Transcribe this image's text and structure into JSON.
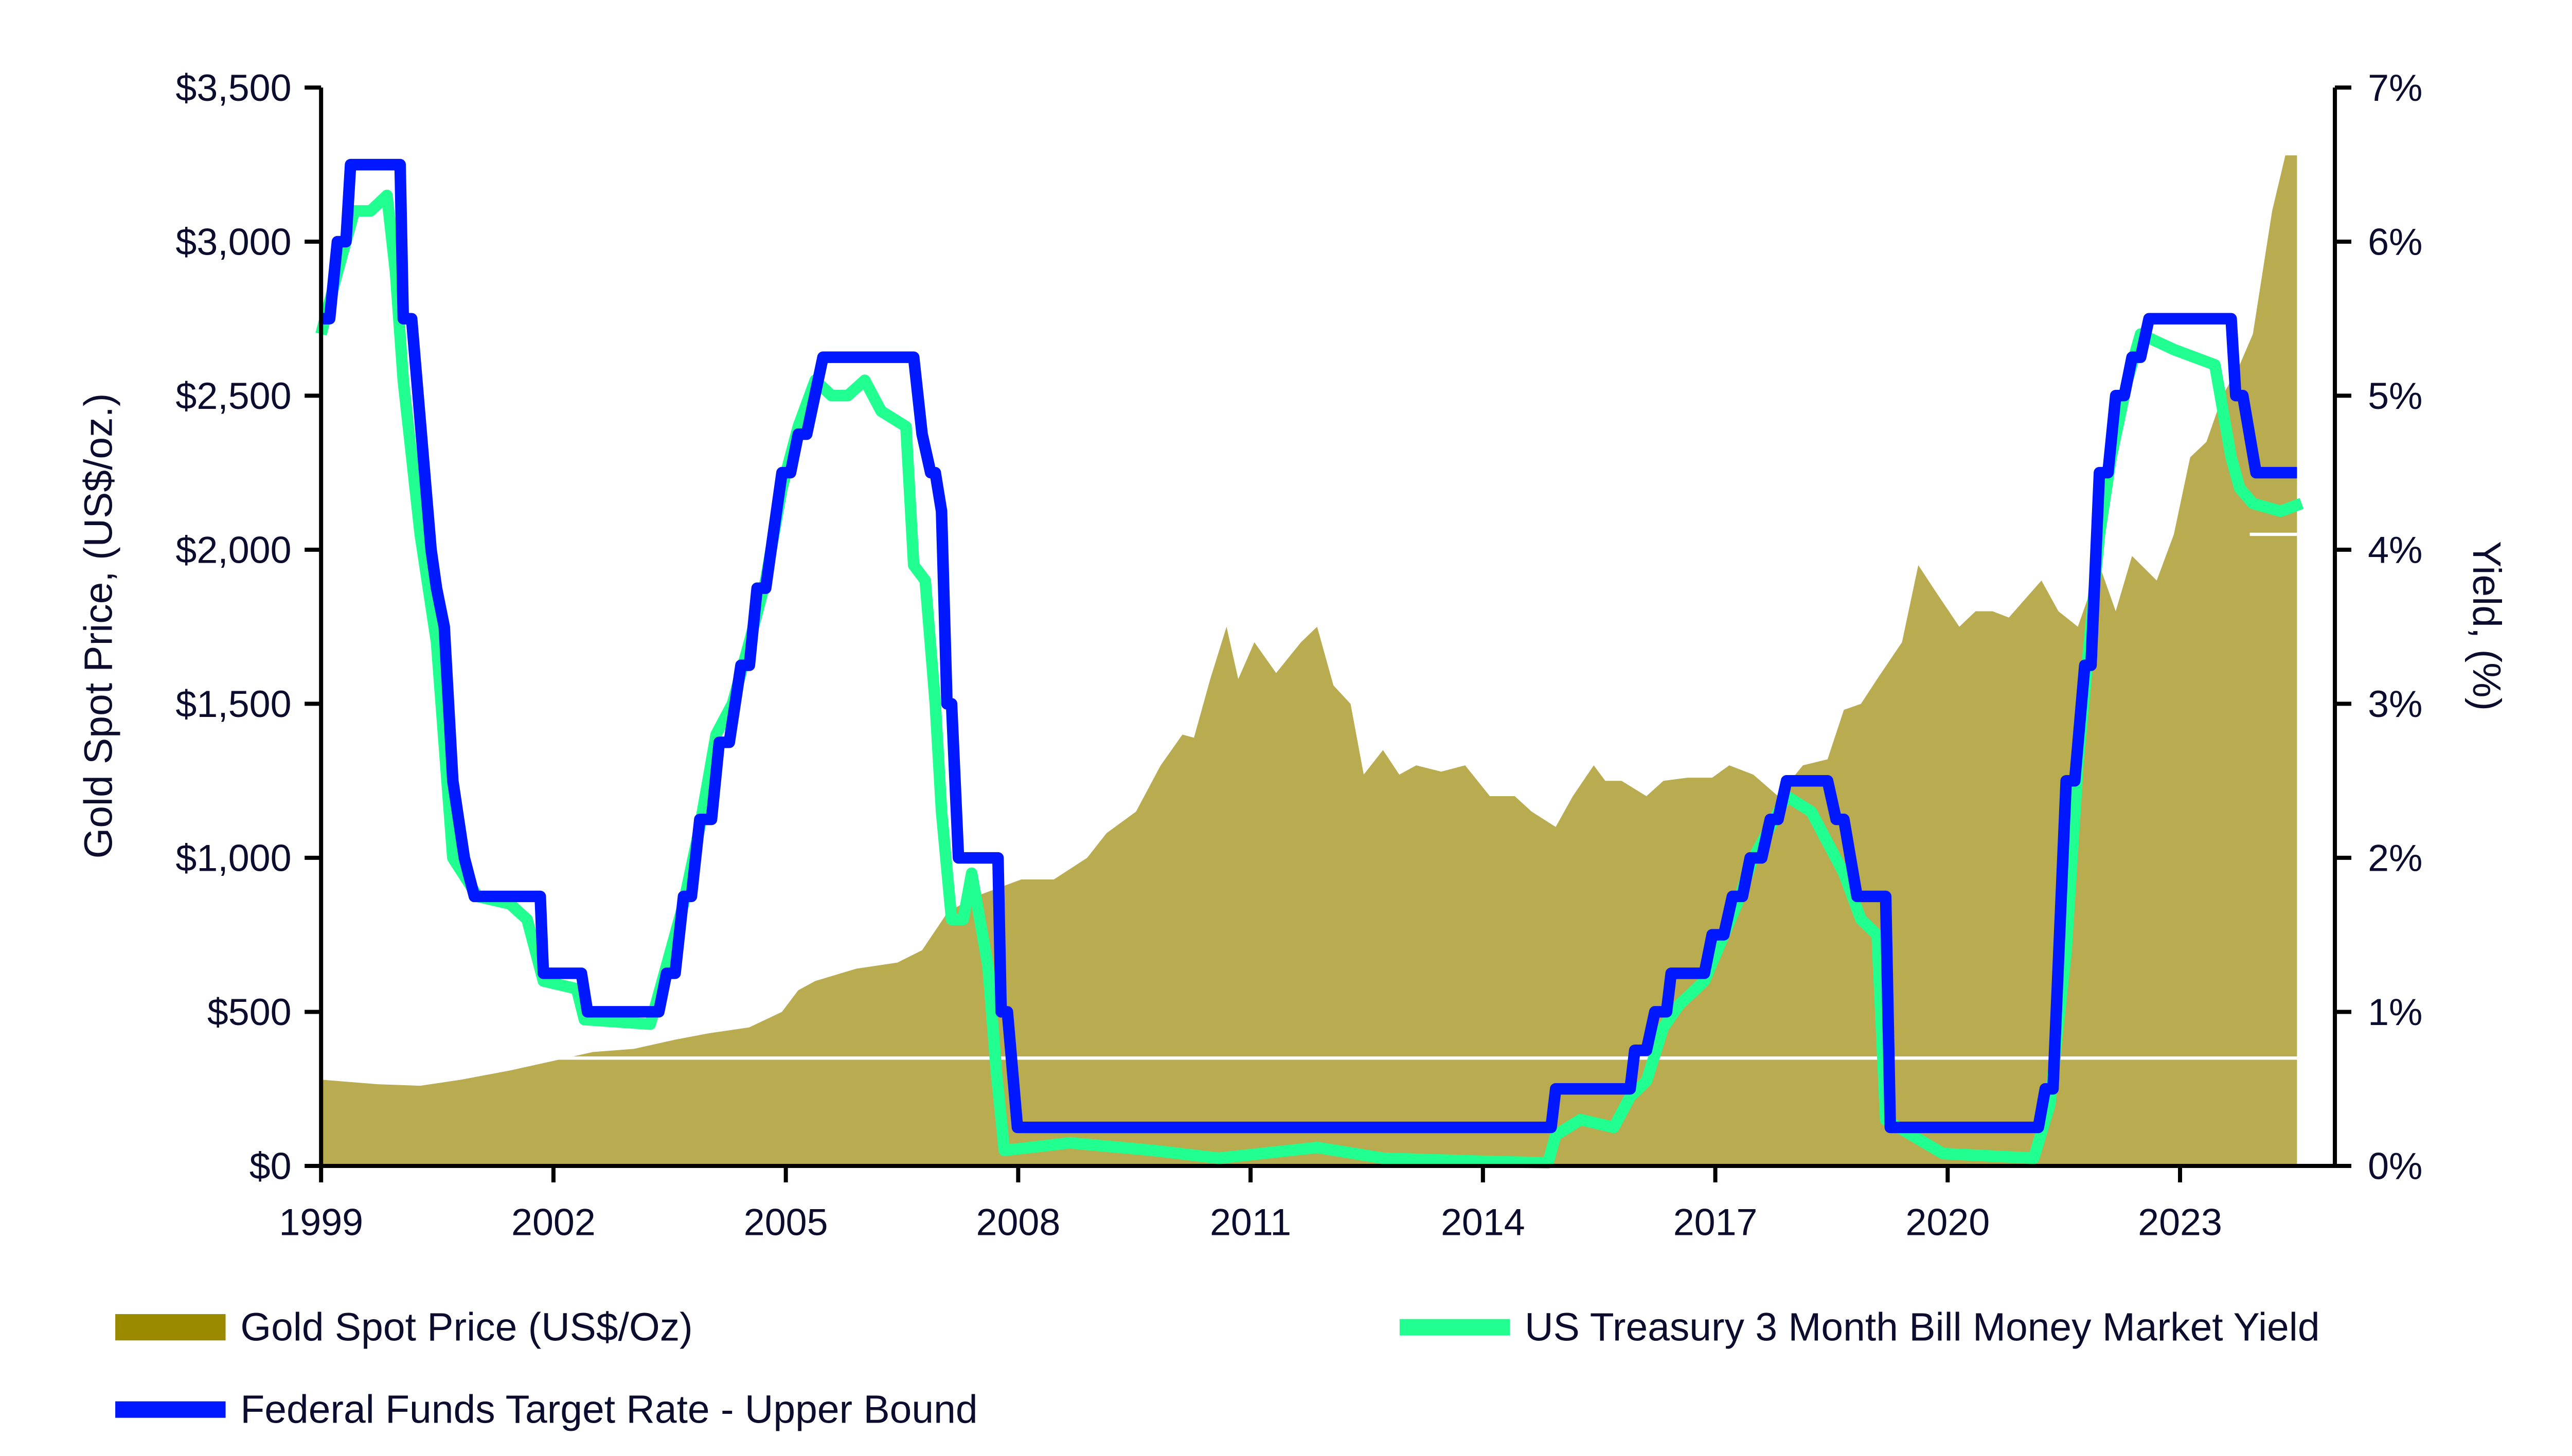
{
  "chart_data": {
    "type": "area+line",
    "title": "",
    "xlabel": "",
    "ylabel_left": "Gold Spot Price, (US$/oz.)",
    "ylabel_right": "Yield, (%)",
    "xlim": [
      1999,
      2025.5
    ],
    "ylim_left": [
      0,
      3500
    ],
    "ylim_right": [
      0,
      7
    ],
    "grid": false,
    "legend_placement": "bottom",
    "x_ticks": [
      "1999",
      "2002",
      "2005",
      "2008",
      "2011",
      "2014",
      "2017",
      "2020",
      "2023"
    ],
    "x_tick_values": [
      1999,
      2002,
      2005,
      2008,
      2011,
      2014,
      2017,
      2020,
      2023
    ],
    "y_ticks_left": [
      "$0",
      "$500",
      "$1,000",
      "$1,500",
      "$2,000",
      "$2,500",
      "$3,000",
      "$3,500"
    ],
    "y_tick_values_left": [
      0,
      500,
      1000,
      1500,
      2000,
      2500,
      3000,
      3500
    ],
    "y_ticks_right": [
      "0%",
      "1%",
      "2%",
      "3%",
      "4%",
      "5%",
      "6%",
      "7%"
    ],
    "y_tick_values_right": [
      0,
      1,
      2,
      3,
      4,
      5,
      6,
      7
    ],
    "colors": {
      "gold": "#b9ab50",
      "gold_legend": "#9a8a00",
      "treasury": "#20ff90",
      "fed": "#0018ff",
      "text": "#0b0c2e"
    },
    "series": [
      {
        "name": "Gold Spot Price (US$/Oz)",
        "axis": "left",
        "kind": "area",
        "x": [
          1999,
          1999.74,
          2000.28,
          2000.81,
          2001.44,
          2001.98,
          2002.51,
          2003.04,
          2003.57,
          2004.0,
          2004.53,
          2004.95,
          2005.16,
          2005.38,
          2005.91,
          2006.44,
          2006.76,
          2007.08,
          2007.4,
          2007.72,
          2008.04,
          2008.46,
          2008.89,
          2009.14,
          2009.52,
          2009.84,
          2010.12,
          2010.27,
          2010.48,
          2010.69,
          2010.84,
          2011.05,
          2011.33,
          2011.65,
          2011.86,
          2012.07,
          2012.29,
          2012.46,
          2012.71,
          2012.92,
          2013.14,
          2013.46,
          2013.77,
          2014.09,
          2014.41,
          2014.63,
          2014.94,
          2015.16,
          2015.43,
          2015.58,
          2015.79,
          2016.11,
          2016.33,
          2016.64,
          2016.96,
          2017.18,
          2017.49,
          2017.81,
          2018.13,
          2018.45,
          2018.66,
          2018.88,
          2019.09,
          2019.41,
          2019.62,
          2019.83,
          2020.15,
          2020.36,
          2020.58,
          2020.79,
          2021.21,
          2021.43,
          2021.68,
          2021.96,
          2022.17,
          2022.38,
          2022.7,
          2022.92,
          2023.13,
          2023.34,
          2023.55,
          2023.77,
          2023.94,
          2024.19,
          2024.36,
          2024.51
        ],
        "values": [
          280,
          265,
          260,
          280,
          310,
          340,
          370,
          380,
          410,
          430,
          450,
          500,
          570,
          600,
          640,
          660,
          700,
          820,
          870,
          900,
          930,
          930,
          1000,
          1080,
          1150,
          1300,
          1400,
          1390,
          1580,
          1750,
          1580,
          1700,
          1600,
          1700,
          1750,
          1560,
          1500,
          1270,
          1350,
          1270,
          1300,
          1280,
          1300,
          1200,
          1200,
          1150,
          1100,
          1200,
          1300,
          1250,
          1250,
          1200,
          1250,
          1260,
          1260,
          1300,
          1270,
          1200,
          1300,
          1320,
          1480,
          1500,
          1580,
          1700,
          1950,
          1870,
          1750,
          1800,
          1800,
          1780,
          1900,
          1800,
          1750,
          1950,
          1800,
          1980,
          1900,
          2050,
          2300,
          2350,
          2500,
          2600,
          2700,
          3100,
          3280,
          3280
        ]
      },
      {
        "name": "US Treasury 3 Month Bill Money Market Yield",
        "axis": "right",
        "kind": "line",
        "x": [
          1999,
          1999.21,
          1999.43,
          1999.64,
          1999.85,
          1999.96,
          2000.06,
          2000.28,
          2000.49,
          2000.7,
          2001.02,
          2001.44,
          2001.66,
          2001.87,
          2002.3,
          2002.4,
          2003.25,
          2003.46,
          2003.68,
          2003.89,
          2004.1,
          2004.31,
          2004.53,
          2004.74,
          2004.95,
          2005.16,
          2005.38,
          2005.59,
          2005.8,
          2006.02,
          2006.23,
          2006.55,
          2006.65,
          2006.8,
          2006.93,
          2007.01,
          2007.14,
          2007.29,
          2007.4,
          2007.61,
          2007.72,
          2007.82,
          2008.67,
          2009.74,
          2010.59,
          2011.86,
          2012.71,
          2013.99,
          2014.84,
          2014.94,
          2015.26,
          2015.69,
          2015.9,
          2016.11,
          2016.33,
          2016.54,
          2016.86,
          2017.07,
          2017.28,
          2017.49,
          2017.71,
          2017.92,
          2018.24,
          2018.45,
          2018.66,
          2018.88,
          2019.09,
          2019.2,
          2019.94,
          2021.11,
          2021.32,
          2021.53,
          2021.68,
          2021.81,
          2021.96,
          2022.11,
          2022.32,
          2022.49,
          2022.92,
          2023.45,
          2023.66,
          2023.77,
          2023.94,
          2024.3,
          2024.57
        ],
        "values": [
          5.4,
          5.8,
          6.2,
          6.2,
          6.3,
          5.8,
          5.1,
          4.1,
          3.4,
          2.0,
          1.75,
          1.7,
          1.6,
          1.2,
          1.15,
          0.95,
          0.92,
          1.3,
          1.7,
          2.2,
          2.8,
          3.0,
          3.4,
          3.8,
          4.4,
          4.8,
          5.1,
          5.0,
          5.0,
          5.1,
          4.9,
          4.8,
          3.9,
          3.8,
          3.0,
          2.3,
          1.6,
          1.6,
          1.9,
          1.3,
          0.6,
          0.1,
          0.15,
          0.1,
          0.05,
          0.12,
          0.05,
          0.03,
          0.02,
          0.2,
          0.3,
          0.25,
          0.45,
          0.55,
          0.9,
          1.05,
          1.2,
          1.45,
          1.7,
          2.0,
          2.2,
          2.4,
          2.3,
          2.1,
          1.9,
          1.6,
          1.5,
          0.3,
          0.08,
          0.05,
          0.4,
          1.4,
          2.6,
          3.3,
          4.1,
          4.6,
          5.1,
          5.4,
          5.3,
          5.2,
          4.6,
          4.4,
          4.3,
          4.25,
          4.3
        ]
      },
      {
        "name": "Federal Funds Target Rate - Upper Bound",
        "axis": "right",
        "kind": "step-line",
        "x": [
          1999,
          1999.11,
          1999.21,
          1999.32,
          1999.38,
          2000.02,
          2000.06,
          2000.17,
          2000.42,
          2000.49,
          2000.59,
          2000.7,
          2000.85,
          2000.98,
          2001.83,
          2001.87,
          2002.36,
          2002.44,
          2003.36,
          2003.46,
          2003.57,
          2003.68,
          2003.78,
          2003.89,
          2004.04,
          2004.14,
          2004.27,
          2004.42,
          2004.53,
          2004.63,
          2004.74,
          2004.95,
          2005.06,
          2005.16,
          2005.27,
          2005.48,
          2006.65,
          2006.76,
          2006.87,
          2006.93,
          2007.01,
          2007.08,
          2007.14,
          2007.23,
          2007.74,
          2007.78,
          2007.86,
          2007.99,
          2014.88,
          2014.94,
          2015.9,
          2015.96,
          2016.11,
          2016.22,
          2016.37,
          2016.43,
          2016.86,
          2016.96,
          2017.11,
          2017.22,
          2017.35,
          2017.45,
          2017.6,
          2017.71,
          2017.81,
          2017.92,
          2018.45,
          2018.56,
          2018.66,
          2018.83,
          2019.2,
          2019.26,
          2021.17,
          2021.26,
          2021.36,
          2021.53,
          2021.64,
          2021.77,
          2021.85,
          2021.96,
          2022.07,
          2022.17,
          2022.28,
          2022.38,
          2022.49,
          2022.6,
          2023.66,
          2023.72,
          2023.81,
          2023.98,
          2024.51
        ],
        "values": [
          5.5,
          5.5,
          6.0,
          6.0,
          6.5,
          6.5,
          5.5,
          5.5,
          4.0,
          3.75,
          3.5,
          2.5,
          2.0,
          1.75,
          1.75,
          1.25,
          1.25,
          1.0,
          1.0,
          1.25,
          1.25,
          1.75,
          1.75,
          2.25,
          2.25,
          2.75,
          2.75,
          3.25,
          3.25,
          3.75,
          3.75,
          4.5,
          4.5,
          4.75,
          4.75,
          5.25,
          5.25,
          4.75,
          4.5,
          4.5,
          4.25,
          3.0,
          3.0,
          2.0,
          2.0,
          1.0,
          1.0,
          0.25,
          0.25,
          0.5,
          0.5,
          0.75,
          0.75,
          1.0,
          1.0,
          1.25,
          1.25,
          1.5,
          1.5,
          1.75,
          1.75,
          2.0,
          2.0,
          2.25,
          2.25,
          2.5,
          2.5,
          2.25,
          2.25,
          1.75,
          1.75,
          0.25,
          0.25,
          0.5,
          0.5,
          2.5,
          2.5,
          3.25,
          3.25,
          4.5,
          4.5,
          5.0,
          5.0,
          5.25,
          5.25,
          5.5,
          5.5,
          5.0,
          5.0,
          4.5,
          4.5
        ]
      }
    ]
  },
  "legend": {
    "gold": "Gold Spot Price (US$/Oz)",
    "treasury": "US Treasury 3 Month Bill Money Market Yield",
    "fed": "Federal Funds Target Rate - Upper Bound"
  }
}
